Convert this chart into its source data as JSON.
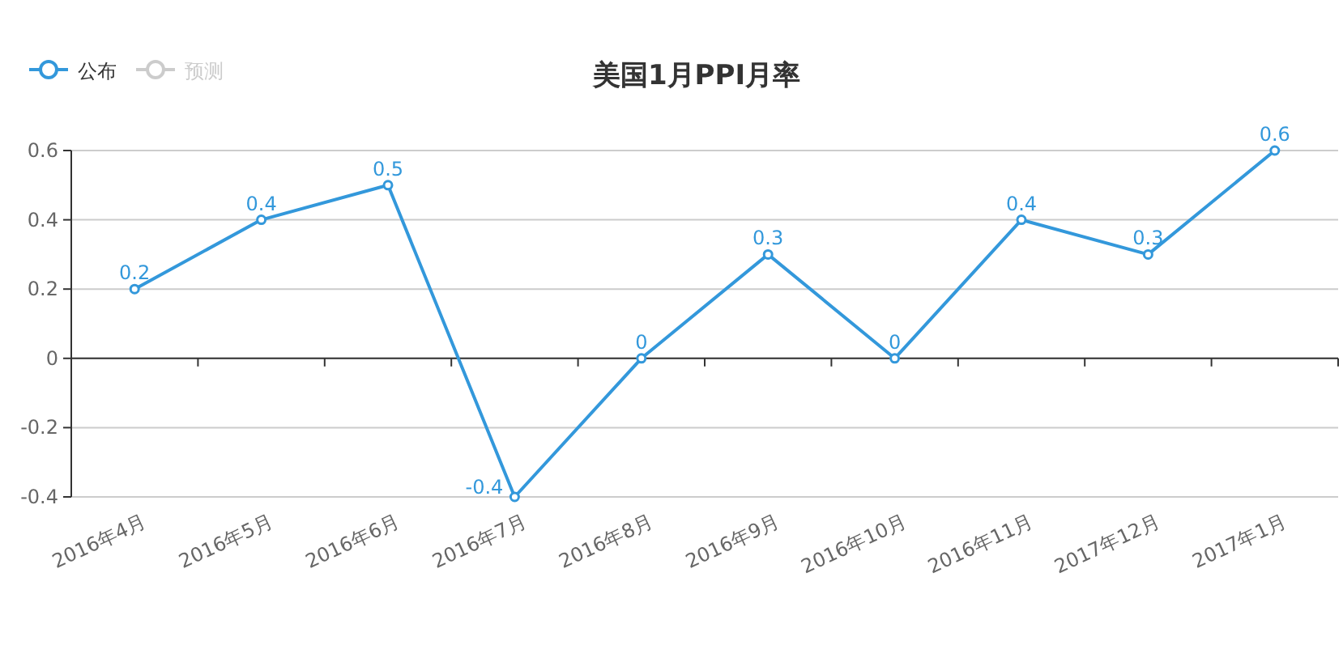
{
  "chart_data": {
    "type": "line",
    "title": "美国1月PPI月率",
    "categories": [
      "2016年4月",
      "2016年5月",
      "2016年6月",
      "2016年7月",
      "2016年8月",
      "2016年9月",
      "2016年10月",
      "2016年11月",
      "2017年12月",
      "2017年1月"
    ],
    "series": [
      {
        "name": "公布",
        "color": "#3398db",
        "values": [
          0.2,
          0.4,
          0.5,
          -0.4,
          0,
          0.3,
          0,
          0.4,
          0.3,
          0.6
        ]
      },
      {
        "name": "预测",
        "color": "#cccccc",
        "values": [
          null,
          null,
          null,
          null,
          null,
          null,
          null,
          null,
          null,
          null
        ]
      }
    ],
    "ylim": [
      -0.4,
      0.6
    ],
    "yticks": [
      -0.4,
      -0.2,
      0,
      0.2,
      0.4,
      0.6
    ],
    "grid": "y",
    "legend": "top left",
    "marker": "circle",
    "line_style": "solid",
    "data_labels": true
  }
}
